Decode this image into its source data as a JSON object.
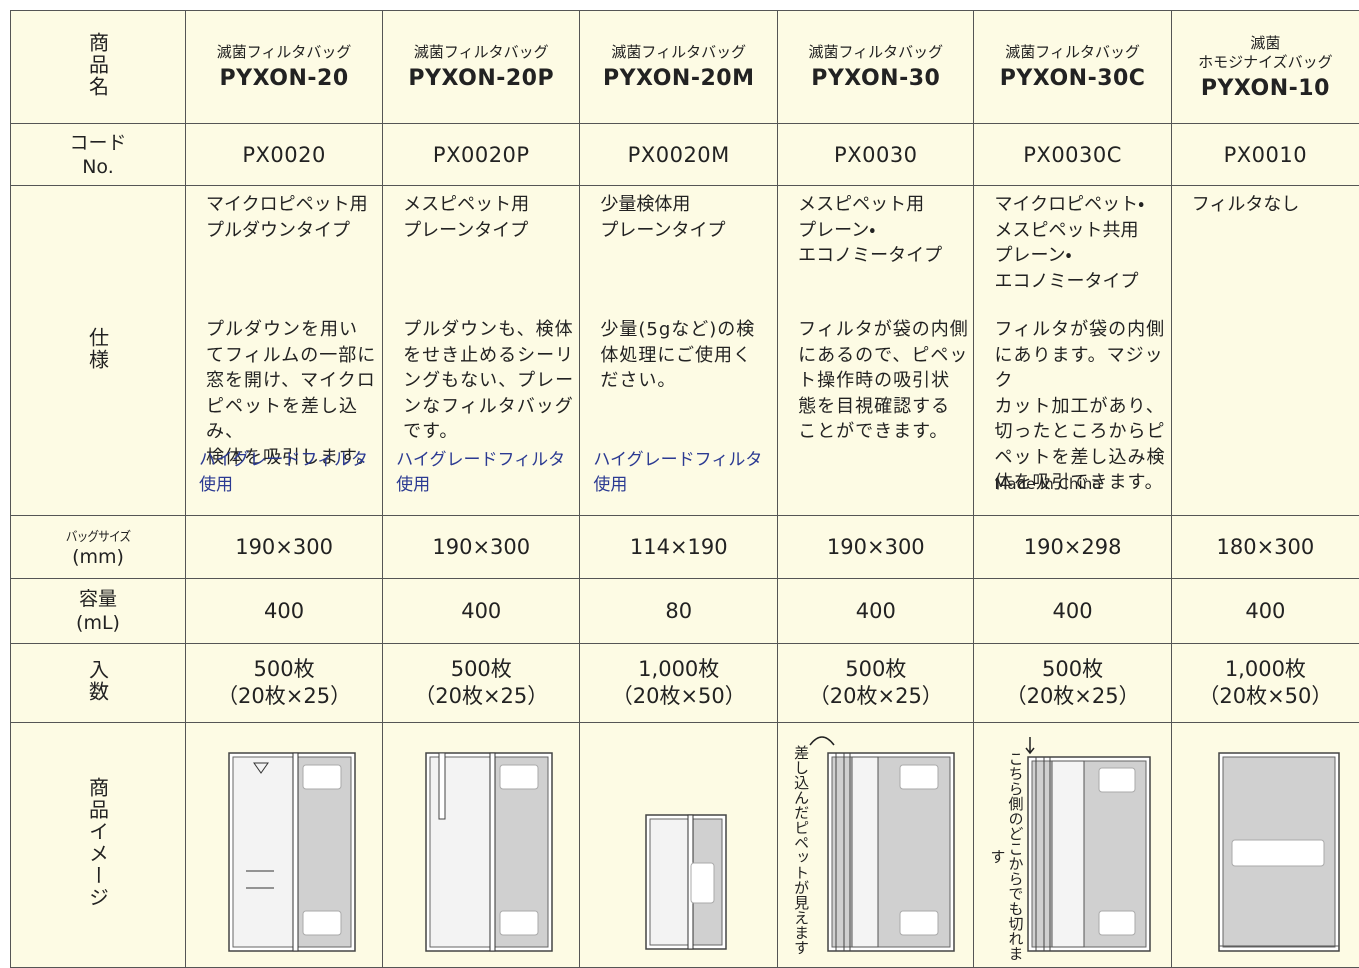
{
  "row_headers": {
    "name": "商品名",
    "code": [
      "コード",
      "No."
    ],
    "spec": "仕様",
    "size": [
      "バッグサイズ",
      "(mm)"
    ],
    "capacity": [
      "容量",
      "(mL)"
    ],
    "count": "入数",
    "image": "商品イメージ"
  },
  "products": [
    {
      "type": [
        "滅菌フィルタバッグ"
      ],
      "model": "PYXON-20",
      "code": "PX0020",
      "spec_type": [
        "マイクロピペット用",
        "プルダウンタイプ"
      ],
      "spec_desc": [
        "プルダウンを用い",
        "てフィルムの一部に",
        "窓を開け、マイクロ",
        "ピペットを差し込み、",
        "検体を吸引します。"
      ],
      "note": "ハイグレードフィルタ使用",
      "size": "190×300",
      "capacity": "400",
      "count": "500枚",
      "count_detail": "（20枚×25）"
    },
    {
      "type": [
        "滅菌フィルタバッグ"
      ],
      "model": "PYXON-20P",
      "code": "PX0020P",
      "spec_type": [
        "メスピペット用",
        "プレーンタイプ"
      ],
      "spec_desc": [
        "プルダウンも、検体",
        "をせき止めるシーリ",
        "ングもない、プレー",
        "ンなフィルタバッグ",
        "です。"
      ],
      "note": "ハイグレードフィルタ使用",
      "size": "190×300",
      "capacity": "400",
      "count": "500枚",
      "count_detail": "（20枚×25）"
    },
    {
      "type": [
        "滅菌フィルタバッグ"
      ],
      "model": "PYXON-20M",
      "code": "PX0020M",
      "spec_type": [
        "少量検体用",
        "プレーンタイプ"
      ],
      "spec_desc": [
        "少量(5gなど)の検",
        "体処理にご使用く",
        "ださい。"
      ],
      "note": "ハイグレードフィルタ使用",
      "size": "114×190",
      "capacity": "80",
      "count": "1,000枚",
      "count_detail": "（20枚×50）"
    },
    {
      "type": [
        "滅菌フィルタバッグ"
      ],
      "model": "PYXON-30",
      "code": "PX0030",
      "spec_type": [
        "メスピペット用",
        "プレーン・",
        "エコノミータイプ"
      ],
      "spec_desc": [
        "フィルタが袋の内側",
        "にあるので、ピペッ",
        "ト操作時の吸引状",
        "態を目視確認する",
        "ことができます。"
      ],
      "size": "190×300",
      "capacity": "400",
      "count": "500枚",
      "count_detail": "（20枚×25）",
      "image_note": "差し込んだピペットが見えます"
    },
    {
      "type": [
        "滅菌フィルタバッグ"
      ],
      "model": "PYXON-30C",
      "code": "PX0030C",
      "spec_type": [
        "マイクロピペット・",
        "メスピペット共用",
        "プレーン・",
        "エコノミータイプ"
      ],
      "spec_desc": [
        "フィルタが袋の内側",
        "にあります。マジック",
        "カット加工があり、",
        "切ったところからピ",
        "ペットを差し込み検",
        "体を吸引できます。"
      ],
      "origin": "Made in China",
      "size": "190×298",
      "capacity": "400",
      "count": "500枚",
      "count_detail": "（20枚×25）",
      "image_note": "こちら側のどこからでも切れます"
    },
    {
      "type": [
        "滅菌",
        "ホモジナイズバッグ"
      ],
      "model": "PYXON-10",
      "code": "PX0010",
      "spec_type": [
        "フィルタなし"
      ],
      "spec_desc": [],
      "size": "180×300",
      "capacity": "400",
      "count": "1,000枚",
      "count_detail": "（20枚×50）"
    }
  ]
}
